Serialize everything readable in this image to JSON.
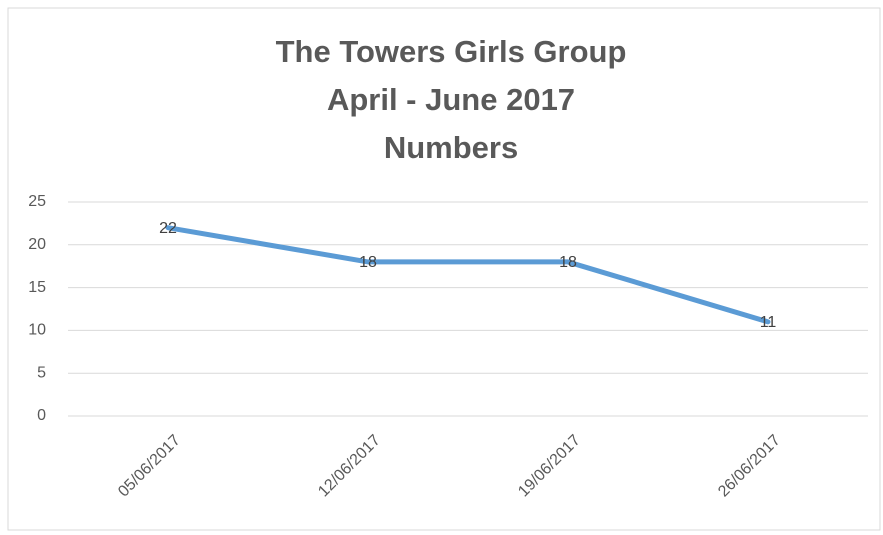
{
  "chart_data": {
    "type": "line",
    "title": [
      "The Towers Girls Group",
      "April - June 2017",
      "Numbers"
    ],
    "categories": [
      "05/06/2017",
      "12/06/2017",
      "19/06/2017",
      "26/06/2017"
    ],
    "values": [
      22,
      18,
      18,
      11
    ],
    "color": "#5b9bd5",
    "ylim": [
      0,
      25
    ],
    "yticks": [
      0,
      5,
      10,
      15,
      20,
      25
    ],
    "grid": true,
    "data_labels": true
  }
}
